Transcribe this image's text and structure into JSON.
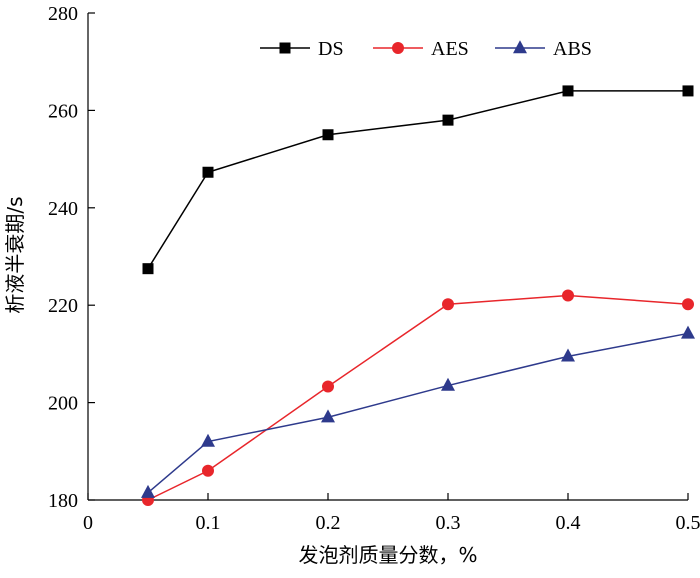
{
  "chart_data": {
    "type": "line",
    "title": "",
    "xlabel": "发泡剂质量分数，%",
    "ylabel": "析液半衰期/s",
    "xlim": [
      0,
      0.5
    ],
    "ylim": [
      180,
      280
    ],
    "x_ticks": [
      "0",
      "0.1",
      "0.2",
      "0.3",
      "0.4",
      "0.5"
    ],
    "y_ticks": [
      "180",
      "200",
      "220",
      "240",
      "260",
      "280"
    ],
    "legend_position": "top-right",
    "x": [
      0.05,
      0.1,
      0.2,
      0.3,
      0.4,
      0.5
    ],
    "series": [
      {
        "name": "DS",
        "color": "#000000",
        "marker": "square",
        "values": [
          227.5,
          247.3,
          255,
          258,
          264,
          264
        ]
      },
      {
        "name": "AES",
        "color": "#e8262b",
        "marker": "circle",
        "values": [
          180,
          186,
          203.3,
          220.2,
          222,
          220.2
        ]
      },
      {
        "name": "ABS",
        "color": "#2e3a8c",
        "marker": "triangle",
        "values": [
          181.5,
          192,
          197,
          203.5,
          209.5,
          214.2
        ]
      }
    ]
  }
}
